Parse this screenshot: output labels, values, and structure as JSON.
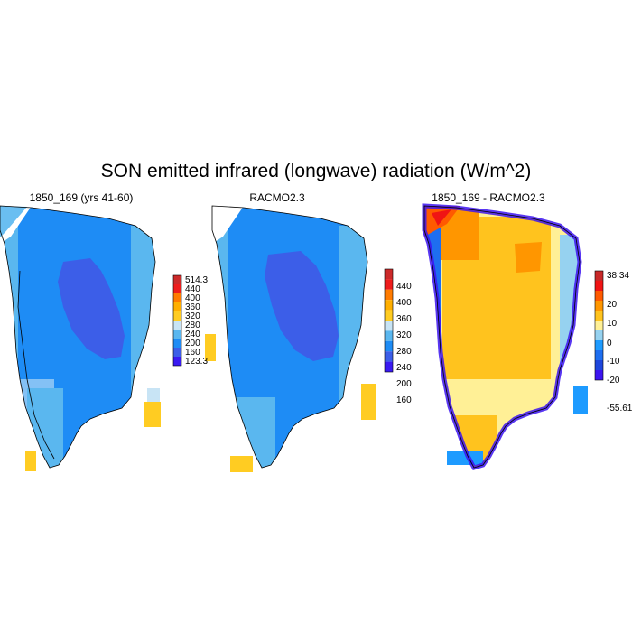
{
  "figure_title": "SON emitted infrared (longwave) radiation (W/m^2)",
  "panels": [
    {
      "title": "1850_169 (yrs 41-60)",
      "colorbar": {
        "labels": [
          "514.3",
          "440",
          "400",
          "360",
          "320",
          "280",
          "240",
          "200",
          "160",
          "123.3"
        ],
        "colors": [
          "#cc2a2a",
          "#ee1c1c",
          "#ff7b00",
          "#ffaf00",
          "#ffcc22",
          "#c8e4f5",
          "#5ab7ef",
          "#1e8cf5",
          "#3c5ee8",
          "#3a1af2"
        ]
      }
    },
    {
      "title": "RACMO2.3",
      "colorbar": {
        "labels": [
          "440",
          "400",
          "360",
          "320",
          "280",
          "240",
          "200",
          "160"
        ],
        "colors": [
          "#cc2a2a",
          "#ee1c1c",
          "#ff7b00",
          "#ffaf00",
          "#ffcc22",
          "#c8e4f5",
          "#5ab7ef",
          "#1e8cf5",
          "#3c5ee8",
          "#3a1af2"
        ]
      }
    },
    {
      "title": "1850_169 - RACMO2.3",
      "colorbar": {
        "labels": [
          "38.34",
          "20",
          "10",
          "0",
          "-10",
          "-20",
          "-55.61"
        ],
        "colors": [
          "#c82828",
          "#f01414",
          "#ff5a00",
          "#ff9600",
          "#ffc31e",
          "#fff096",
          "#96d2f0",
          "#1e9bff",
          "#1e6ef0",
          "#1e46dc",
          "#3c14f0"
        ]
      }
    }
  ]
}
